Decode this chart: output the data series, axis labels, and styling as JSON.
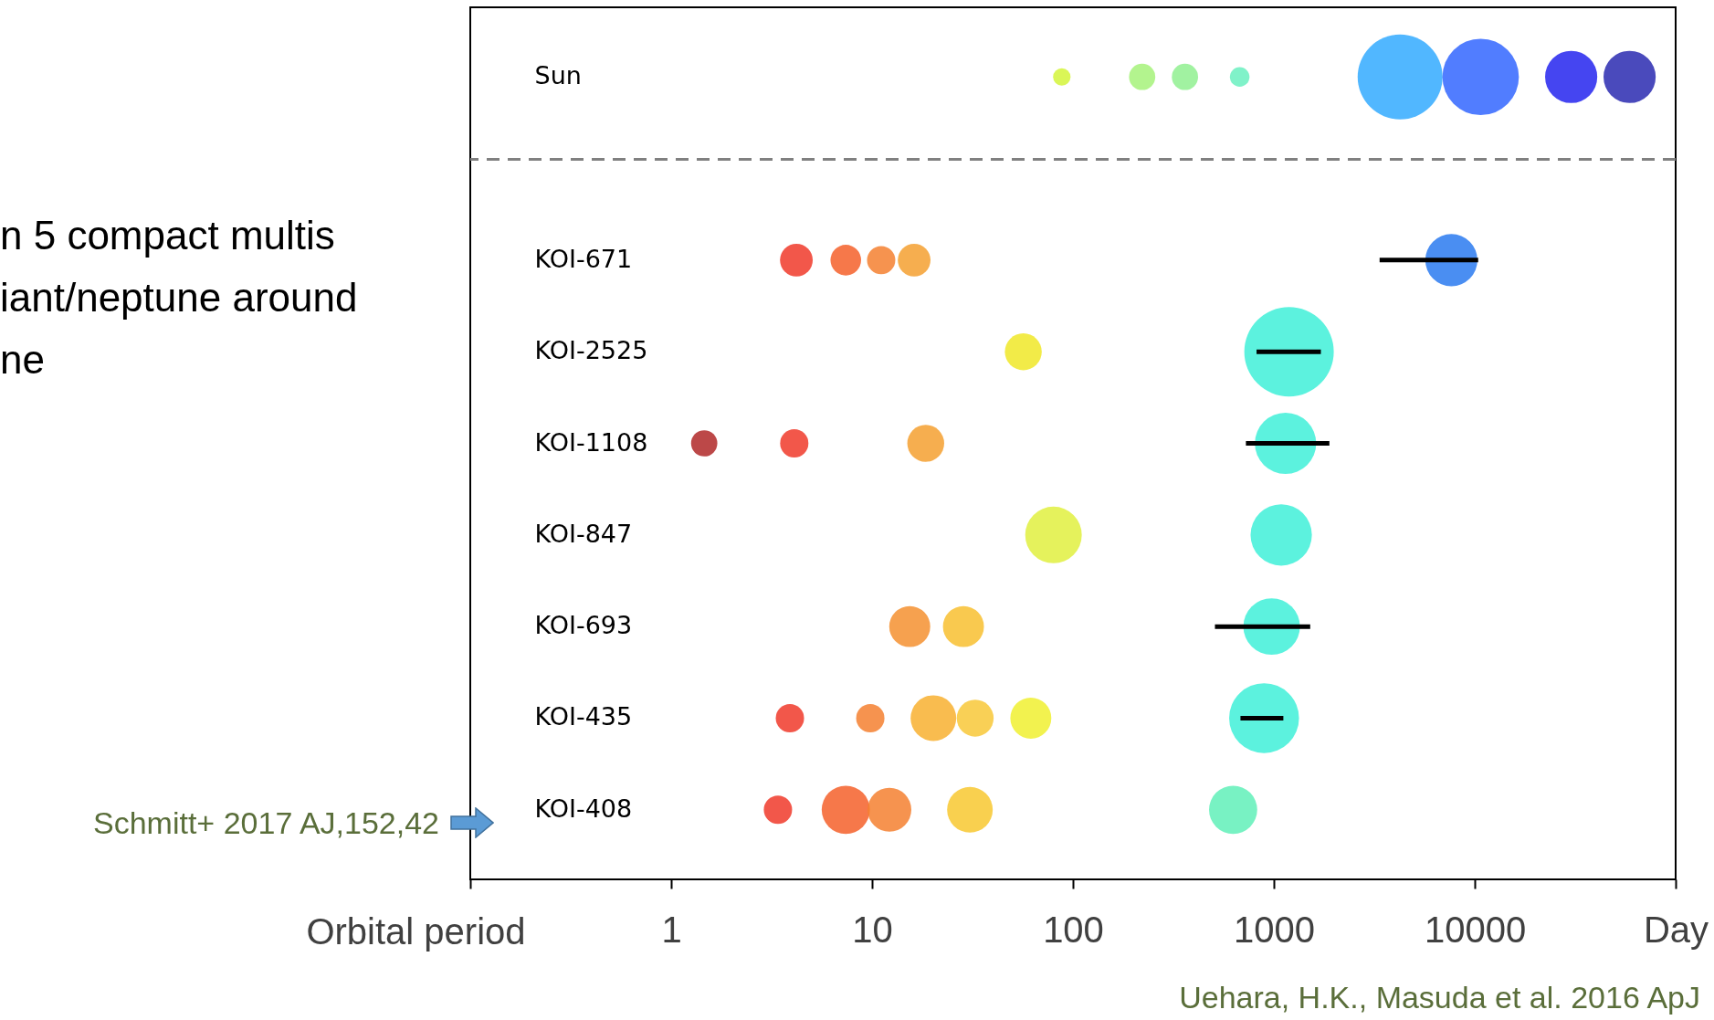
{
  "chart_data": {
    "type": "bubble",
    "orientation": "horizontal",
    "categories": [
      "Sun",
      null,
      "KOI-671",
      "KOI-2525",
      "KOI-1108",
      "KOI-847",
      "KOI-693",
      "KOI-435",
      "KOI-408"
    ],
    "log": "x",
    "xlim": [
      0.1,
      100000
    ],
    "xticks": [
      {
        "value": 0.1,
        "label": null
      },
      1,
      10,
      100,
      1000,
      10000,
      {
        "value": 100000,
        "label": "Day"
      }
    ],
    "xlabel": "Orbital period",
    "grid": false,
    "annotations": [
      "n 5  compact multis",
      "iant/neptune around",
      "ne",
      "Schmitt+ 2017 AJ,152,42",
      "Uehara, H.K., Masuda et al. 2016 ApJ"
    ],
    "series": [
      {
        "values": [
          88,
          null,
          4.2,
          56.6,
          1.46,
          80,
          15.4,
          3.9,
          3.4
        ],
        "sizes": [
          0.038,
          null,
          0.134,
          0.17,
          0.086,
          0.4,
          0.21,
          0.1,
          0.1
        ],
        "colors": [
          "#d4f53a",
          null,
          "#f03a2a",
          "#f0e828",
          "#b02828",
          "#e0f040",
          "#f59030",
          "#f03a2a",
          "#f03a2a"
        ]
      },
      {
        "values": [
          221,
          null,
          7.4,
          1190,
          4.1,
          1088,
          28.5,
          9.8,
          7.4
        ],
        "sizes": [
          0.086,
          null,
          0.117,
          1,
          0.1,
          0.47,
          0.21,
          0.1,
          0.29
        ],
        "colors": [
          "#a6f27a",
          null,
          "#f5602a",
          "#40f0d8",
          "#f03a2a",
          "#40f0d8",
          "#f8c030",
          "#f58030",
          "#f5602a"
        ],
        "errors": [
          null,
          null,
          null,
          [
            820,
            1714
          ],
          null,
          null,
          null,
          null,
          null
        ]
      },
      {
        "values": [
          361,
          null,
          11.1,
          null,
          18.5,
          null,
          975,
          20.2,
          12.2
        ],
        "sizes": [
          0.086,
          null,
          0.1,
          null,
          0.17,
          null,
          0.4,
          0.26,
          0.24
        ],
        "colors": [
          "#90f090",
          null,
          "#f58030",
          null,
          "#f5a030",
          null,
          "#40f0d8",
          "#f8b030",
          "#f58030"
        ],
        "errors": [
          null,
          null,
          null,
          null,
          null,
          null,
          [
            509,
            1517
          ],
          null,
          null
        ]
      },
      {
        "values": [
          676,
          null,
          16.2,
          null,
          1143,
          null,
          null,
          32.6,
          30.7
        ],
        "sizes": [
          0.048,
          null,
          0.134,
          null,
          0.47,
          null,
          null,
          0.17,
          0.26
        ],
        "colors": [
          "#6af0c0",
          null,
          "#f5a030",
          null,
          "#40f0d8",
          null,
          null,
          "#f8c838",
          "#f8c830"
        ],
        "errors": [
          null,
          null,
          null,
          null,
          [
            726,
            1890
          ],
          null,
          null,
          null,
          null
        ]
      },
      {
        "values": [
          4250,
          null,
          7650,
          null,
          null,
          null,
          null,
          61.7,
          627
        ],
        "sizes": [
          0.9,
          null,
          0.34,
          null,
          null,
          null,
          null,
          0.21,
          0.29
        ],
        "colors": [
          "#33aaff",
          null,
          "#2a7af0",
          null,
          null,
          null,
          null,
          "#f0f030",
          "#60f0b8"
        ],
        "errors": [
          null,
          null,
          [
            3360,
            10400
          ],
          null,
          null,
          null,
          null,
          null,
          null
        ]
      },
      {
        "values": [
          10700,
          null,
          null,
          null,
          null,
          null,
          null,
          894,
          null
        ],
        "sizes": [
          0.73,
          null,
          null,
          null,
          null,
          null,
          null,
          0.61,
          null
        ],
        "colors": [
          "#3366ff",
          null,
          null,
          null,
          null,
          null,
          null,
          "#40f0d8",
          null
        ],
        "errors": [
          null,
          null,
          null,
          null,
          null,
          null,
          null,
          [
            682,
            1115
          ],
          null
        ]
      },
      {
        "values": [
          30200,
          null,
          null,
          null,
          null,
          null,
          null,
          null,
          null
        ],
        "sizes": [
          0.34,
          null,
          null,
          null,
          null,
          null,
          null,
          null,
          null
        ],
        "colors": [
          "#2424ee",
          null,
          null,
          null,
          null,
          null,
          null,
          null,
          null
        ]
      },
      {
        "values": [
          59000,
          null,
          null,
          null,
          null,
          null,
          null,
          null,
          null
        ],
        "sizes": [
          0.34,
          null,
          null,
          null,
          null,
          null,
          null,
          null,
          null
        ],
        "colors": [
          "#2a2ab0",
          null,
          null,
          null,
          null,
          null,
          null,
          null,
          null
        ]
      }
    ]
  }
}
